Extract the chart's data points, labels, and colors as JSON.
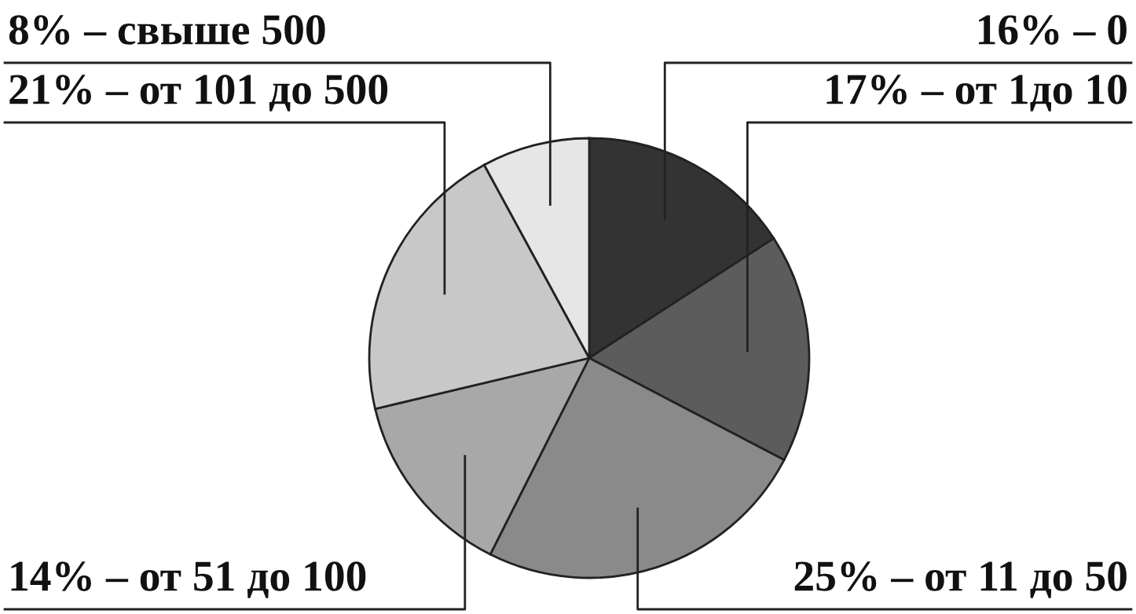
{
  "chart_data": {
    "type": "pie",
    "categories": [
      "16% – 0",
      "17% – от 1до 10",
      "25% – от 11 до 50",
      "14% – от 51 до 100",
      "21% – от 101 до 500",
      "8% – свыше 500"
    ],
    "values": [
      16,
      17,
      25,
      14,
      21,
      8
    ],
    "colors": [
      "#333333",
      "#5c5c5c",
      "#8a8a8a",
      "#a8a8a8",
      "#c8c8c8",
      "#e6e6e6"
    ]
  }
}
